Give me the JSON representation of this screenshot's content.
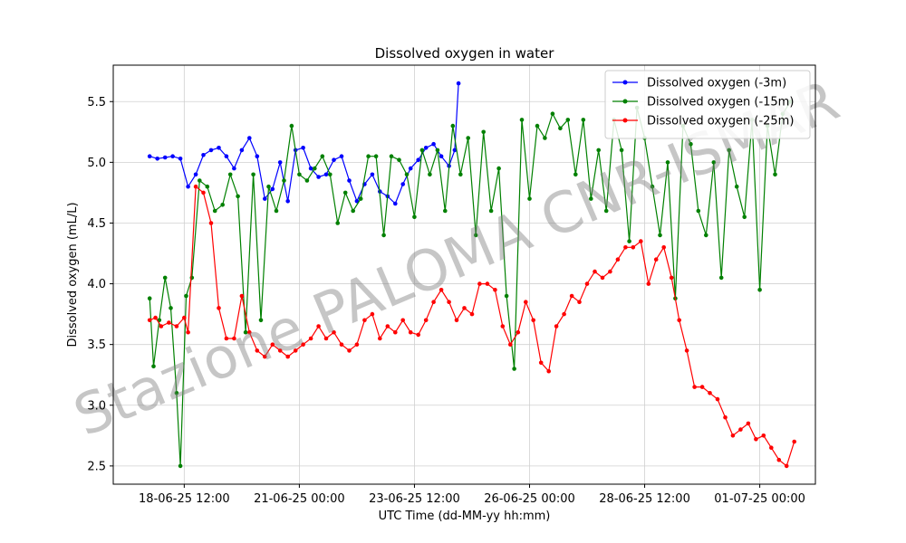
{
  "chart_data": {
    "type": "line",
    "title": "Dissolved oxygen in water",
    "xlabel": "UTC Time (dd-MM-yy hh:mm)",
    "ylabel": "Dissolved oxygen (mL/L)",
    "x_is_datetime": true,
    "xlim": [
      "2025-06-16 23:00",
      "2025-07-02 05:00"
    ],
    "ylim": [
      2.35,
      5.8
    ],
    "x_ticks": [
      {
        "value": "2025-06-18 12:00",
        "label": "18-06-25 12:00"
      },
      {
        "value": "2025-06-21 00:00",
        "label": "21-06-25 00:00"
      },
      {
        "value": "2025-06-23 12:00",
        "label": "23-06-25 12:00"
      },
      {
        "value": "2025-06-26 00:00",
        "label": "26-06-25 00:00"
      },
      {
        "value": "2025-06-28 12:00",
        "label": "28-06-25 12:00"
      },
      {
        "value": "2025-07-01 00:00",
        "label": "01-07-25 00:00"
      }
    ],
    "y_ticks": [
      2.5,
      3.0,
      3.5,
      4.0,
      4.5,
      5.0,
      5.5
    ],
    "y_tick_labels": [
      "2.5",
      "3.0",
      "3.5",
      "4.0",
      "4.5",
      "5.0",
      "5.5"
    ],
    "grid": true,
    "legend_position": "top-right",
    "watermark": "Stazione PALOMA CNR-ISMAR",
    "series": [
      {
        "name": "Dissolved oxygen (-3m)",
        "color": "#0000ff",
        "x": [
          "2025-06-17 18:00",
          "2025-06-17 22:00",
          "2025-06-18 02:00",
          "2025-06-18 06:00",
          "2025-06-18 10:00",
          "2025-06-18 14:00",
          "2025-06-18 18:00",
          "2025-06-18 22:00",
          "2025-06-19 02:00",
          "2025-06-19 06:00",
          "2025-06-19 10:00",
          "2025-06-19 14:00",
          "2025-06-19 18:00",
          "2025-06-19 22:00",
          "2025-06-20 02:00",
          "2025-06-20 06:00",
          "2025-06-20 10:00",
          "2025-06-20 14:00",
          "2025-06-20 18:00",
          "2025-06-20 22:00",
          "2025-06-21 02:00",
          "2025-06-21 06:00",
          "2025-06-21 10:00",
          "2025-06-21 14:00",
          "2025-06-21 18:00",
          "2025-06-21 22:00",
          "2025-06-22 02:00",
          "2025-06-22 06:00",
          "2025-06-22 10:00",
          "2025-06-22 14:00",
          "2025-06-22 18:00",
          "2025-06-22 22:00",
          "2025-06-23 02:00",
          "2025-06-23 06:00",
          "2025-06-23 10:00",
          "2025-06-23 14:00",
          "2025-06-23 18:00",
          "2025-06-23 22:00",
          "2025-06-24 02:00",
          "2025-06-24 06:00",
          "2025-06-24 09:00",
          "2025-06-24 11:00"
        ],
        "values": [
          5.05,
          5.03,
          5.04,
          5.05,
          5.03,
          4.8,
          4.9,
          5.06,
          5.1,
          5.12,
          5.05,
          4.95,
          5.1,
          5.2,
          5.05,
          4.7,
          4.78,
          5.0,
          4.68,
          5.1,
          5.12,
          4.95,
          4.88,
          4.9,
          5.02,
          5.05,
          4.85,
          4.68,
          4.82,
          4.9,
          4.76,
          4.72,
          4.66,
          4.82,
          4.95,
          5.02,
          5.12,
          5.15,
          5.05,
          4.97,
          5.1,
          5.65
        ]
      },
      {
        "name": "Dissolved oxygen (-15m)",
        "color": "#008000",
        "x": [
          "2025-06-17 18:00",
          "2025-06-17 20:00",
          "2025-06-17 23:00",
          "2025-06-18 02:00",
          "2025-06-18 05:00",
          "2025-06-18 08:00",
          "2025-06-18 10:00",
          "2025-06-18 13:00",
          "2025-06-18 16:00",
          "2025-06-18 20:00",
          "2025-06-19 00:00",
          "2025-06-19 04:00",
          "2025-06-19 08:00",
          "2025-06-19 12:00",
          "2025-06-19 16:00",
          "2025-06-19 20:00",
          "2025-06-20 00:00",
          "2025-06-20 04:00",
          "2025-06-20 08:00",
          "2025-06-20 12:00",
          "2025-06-20 16:00",
          "2025-06-20 20:00",
          "2025-06-21 00:00",
          "2025-06-21 04:00",
          "2025-06-21 08:00",
          "2025-06-21 12:00",
          "2025-06-21 16:00",
          "2025-06-21 20:00",
          "2025-06-22 00:00",
          "2025-06-22 04:00",
          "2025-06-22 08:00",
          "2025-06-22 12:00",
          "2025-06-22 16:00",
          "2025-06-22 20:00",
          "2025-06-23 00:00",
          "2025-06-23 04:00",
          "2025-06-23 08:00",
          "2025-06-23 12:00",
          "2025-06-23 16:00",
          "2025-06-23 20:00",
          "2025-06-24 00:00",
          "2025-06-24 04:00",
          "2025-06-24 08:00",
          "2025-06-24 12:00",
          "2025-06-24 16:00",
          "2025-06-24 20:00",
          "2025-06-25 00:00",
          "2025-06-25 04:00",
          "2025-06-25 08:00",
          "2025-06-25 12:00",
          "2025-06-25 16:00",
          "2025-06-25 20:00",
          "2025-06-26 00:00",
          "2025-06-26 04:00",
          "2025-06-26 08:00",
          "2025-06-26 12:00",
          "2025-06-26 16:00",
          "2025-06-26 20:00",
          "2025-06-27 00:00",
          "2025-06-27 04:00",
          "2025-06-27 08:00",
          "2025-06-27 12:00",
          "2025-06-27 16:00",
          "2025-06-27 20:00",
          "2025-06-28 00:00",
          "2025-06-28 04:00",
          "2025-06-28 08:00",
          "2025-06-28 12:00",
          "2025-06-28 16:00",
          "2025-06-28 20:00",
          "2025-06-29 00:00",
          "2025-06-29 04:00",
          "2025-06-29 08:00",
          "2025-06-29 12:00",
          "2025-06-29 16:00",
          "2025-06-29 20:00",
          "2025-06-30 00:00",
          "2025-06-30 04:00",
          "2025-06-30 08:00",
          "2025-06-30 12:00",
          "2025-06-30 16:00",
          "2025-06-30 20:00",
          "2025-07-01 00:00",
          "2025-07-01 04:00",
          "2025-07-01 08:00",
          "2025-07-01 12:00",
          "2025-07-01 16:00"
        ],
        "values": [
          3.88,
          3.32,
          3.7,
          4.05,
          3.8,
          3.1,
          2.5,
          3.9,
          4.05,
          4.85,
          4.8,
          4.6,
          4.65,
          4.9,
          4.72,
          3.6,
          4.9,
          3.7,
          4.8,
          4.6,
          4.85,
          5.3,
          4.9,
          4.85,
          4.95,
          5.05,
          4.9,
          4.5,
          4.75,
          4.6,
          4.7,
          5.05,
          5.05,
          4.4,
          5.05,
          5.02,
          4.9,
          4.55,
          5.1,
          4.9,
          5.1,
          4.6,
          5.3,
          4.9,
          5.2,
          4.4,
          5.25,
          4.6,
          4.95,
          3.9,
          3.3,
          5.35,
          4.7,
          5.3,
          5.2,
          5.4,
          5.28,
          5.35,
          4.9,
          5.35,
          4.7,
          5.1,
          4.6,
          5.35,
          5.1,
          4.35,
          5.45,
          5.2,
          4.8,
          4.4,
          5.0,
          3.88,
          5.3,
          5.15,
          4.6,
          4.4,
          5.0,
          4.05,
          5.1,
          4.8,
          4.55,
          5.35,
          3.95,
          5.3,
          4.9,
          5.4,
          5.5
        ]
      },
      {
        "name": "Dissolved oxygen (-25m)",
        "color": "#ff0000",
        "x": [
          "2025-06-17 18:00",
          "2025-06-17 21:00",
          "2025-06-18 00:00",
          "2025-06-18 04:00",
          "2025-06-18 08:00",
          "2025-06-18 12:00",
          "2025-06-18 14:00",
          "2025-06-18 18:00",
          "2025-06-18 22:00",
          "2025-06-19 02:00",
          "2025-06-19 06:00",
          "2025-06-19 10:00",
          "2025-06-19 14:00",
          "2025-06-19 18:00",
          "2025-06-19 22:00",
          "2025-06-20 02:00",
          "2025-06-20 06:00",
          "2025-06-20 10:00",
          "2025-06-20 14:00",
          "2025-06-20 18:00",
          "2025-06-20 22:00",
          "2025-06-21 02:00",
          "2025-06-21 06:00",
          "2025-06-21 10:00",
          "2025-06-21 14:00",
          "2025-06-21 18:00",
          "2025-06-21 22:00",
          "2025-06-22 02:00",
          "2025-06-22 06:00",
          "2025-06-22 10:00",
          "2025-06-22 14:00",
          "2025-06-22 18:00",
          "2025-06-22 22:00",
          "2025-06-23 02:00",
          "2025-06-23 06:00",
          "2025-06-23 10:00",
          "2025-06-23 14:00",
          "2025-06-23 18:00",
          "2025-06-23 22:00",
          "2025-06-24 02:00",
          "2025-06-24 06:00",
          "2025-06-24 10:00",
          "2025-06-24 14:00",
          "2025-06-24 18:00",
          "2025-06-24 22:00",
          "2025-06-25 02:00",
          "2025-06-25 06:00",
          "2025-06-25 10:00",
          "2025-06-25 14:00",
          "2025-06-25 18:00",
          "2025-06-25 22:00",
          "2025-06-26 02:00",
          "2025-06-26 06:00",
          "2025-06-26 10:00",
          "2025-06-26 14:00",
          "2025-06-26 18:00",
          "2025-06-26 22:00",
          "2025-06-27 02:00",
          "2025-06-27 06:00",
          "2025-06-27 10:00",
          "2025-06-27 14:00",
          "2025-06-27 18:00",
          "2025-06-27 22:00",
          "2025-06-28 02:00",
          "2025-06-28 06:00",
          "2025-06-28 10:00",
          "2025-06-28 14:00",
          "2025-06-28 18:00",
          "2025-06-28 22:00",
          "2025-06-29 02:00",
          "2025-06-29 06:00",
          "2025-06-29 10:00",
          "2025-06-29 14:00",
          "2025-06-29 18:00",
          "2025-06-29 22:00",
          "2025-06-30 02:00",
          "2025-06-30 06:00",
          "2025-06-30 10:00",
          "2025-06-30 14:00",
          "2025-06-30 18:00",
          "2025-06-30 22:00",
          "2025-07-01 02:00",
          "2025-07-01 06:00",
          "2025-07-01 10:00",
          "2025-07-01 14:00",
          "2025-07-01 18:00"
        ],
        "values": [
          3.7,
          3.72,
          3.65,
          3.68,
          3.65,
          3.72,
          3.6,
          4.8,
          4.75,
          4.5,
          3.8,
          3.55,
          3.55,
          3.9,
          3.6,
          3.45,
          3.4,
          3.5,
          3.45,
          3.4,
          3.45,
          3.5,
          3.55,
          3.65,
          3.55,
          3.6,
          3.5,
          3.45,
          3.5,
          3.7,
          3.75,
          3.55,
          3.65,
          3.6,
          3.7,
          3.6,
          3.58,
          3.7,
          3.85,
          3.95,
          3.85,
          3.7,
          3.8,
          3.75,
          4.0,
          4.0,
          3.95,
          3.65,
          3.5,
          3.6,
          3.85,
          3.7,
          3.35,
          3.28,
          3.65,
          3.75,
          3.9,
          3.85,
          4.0,
          4.1,
          4.05,
          4.1,
          4.2,
          4.3,
          4.3,
          4.35,
          4.0,
          4.2,
          4.3,
          4.05,
          3.7,
          3.45,
          3.15,
          3.15,
          3.1,
          3.05,
          2.9,
          2.75,
          2.8,
          2.85,
          2.72,
          2.75,
          2.65,
          2.55,
          2.5,
          2.7
        ]
      }
    ]
  }
}
